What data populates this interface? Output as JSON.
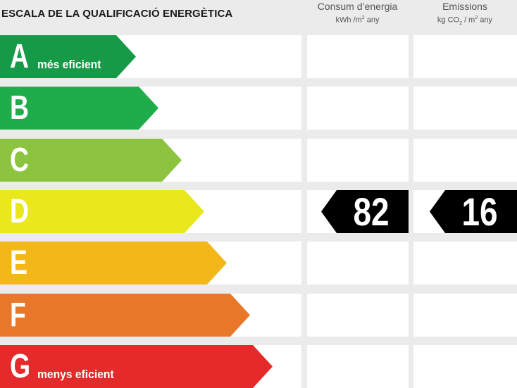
{
  "title": "ESCALA DE LA QUALIFICACIÓ ENERGÈTICA",
  "columns": {
    "consum": {
      "title": "Consum d’energia",
      "unit_pre": "kWh /m",
      "unit_sup": "2",
      "unit_post": " any"
    },
    "emissions": {
      "title": "Emissions",
      "unit_pre": "kg CO",
      "unit_sub": "2",
      "unit_mid": " / m",
      "unit_sup": "2",
      "unit_post": " any"
    }
  },
  "ratings": [
    {
      "letter": "A",
      "desc": "més eficient",
      "color": "#169a48"
    },
    {
      "letter": "B",
      "desc": "",
      "color": "#1fac4b"
    },
    {
      "letter": "C",
      "desc": "",
      "color": "#8cc43f"
    },
    {
      "letter": "D",
      "desc": "",
      "color": "#eae71d"
    },
    {
      "letter": "E",
      "desc": "",
      "color": "#f4b71a"
    },
    {
      "letter": "F",
      "desc": "",
      "color": "#e8772a"
    },
    {
      "letter": "G",
      "desc": "menys eficient",
      "color": "#e42a2a"
    }
  ],
  "result": {
    "rating": "D",
    "consum_value": "82",
    "emissions_value": "16",
    "indicator_color": "#000000"
  }
}
